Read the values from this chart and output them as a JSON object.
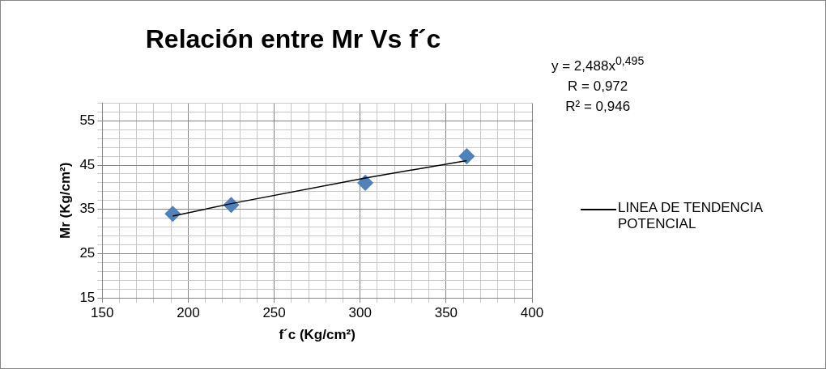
{
  "chart_data": {
    "type": "scatter",
    "title": "Relación entre Mr Vs f´c",
    "xlabel": "f´c (Kg/cm²)",
    "ylabel": "Mr (Kg/cm²)",
    "x": [
      191,
      225,
      303,
      362
    ],
    "series": [
      {
        "color": "#4f81bd",
        "marker": "diamond",
        "values": [
          34,
          36,
          41,
          47
        ]
      },
      {
        "type": "line",
        "name": "LINEA DE TENDENCIA POTENCIAL",
        "color": "#000000",
        "marker": "none",
        "line_style": "solid",
        "x": [
          191,
          225,
          303,
          362
        ],
        "values": [
          33.5,
          36.3,
          42.1,
          46.0
        ]
      }
    ],
    "xlim": [
      150,
      400
    ],
    "xticks": [
      150,
      {
        "value": 160,
        "label": null
      },
      {
        "value": 170,
        "label": null
      },
      {
        "value": 180,
        "label": null
      },
      {
        "value": 190,
        "label": null
      },
      200,
      {
        "value": 210,
        "label": null
      },
      {
        "value": 220,
        "label": null
      },
      {
        "value": 230,
        "label": null
      },
      {
        "value": 240,
        "label": null
      },
      250,
      {
        "value": 260,
        "label": null
      },
      {
        "value": 270,
        "label": null
      },
      {
        "value": 280,
        "label": null
      },
      {
        "value": 290,
        "label": null
      },
      300,
      {
        "value": 310,
        "label": null
      },
      {
        "value": 320,
        "label": null
      },
      {
        "value": 330,
        "label": null
      },
      {
        "value": 340,
        "label": null
      },
      350,
      {
        "value": 360,
        "label": null
      },
      {
        "value": 370,
        "label": null
      },
      {
        "value": 380,
        "label": null
      },
      {
        "value": 390,
        "label": null
      },
      400
    ],
    "ylim": [
      15,
      59
    ],
    "yticks": [
      15,
      {
        "value": 17,
        "label": null
      },
      {
        "value": 19,
        "label": null
      },
      {
        "value": 21,
        "label": null
      },
      {
        "value": 23,
        "label": null
      },
      25,
      {
        "value": 27,
        "label": null
      },
      {
        "value": 29,
        "label": null
      },
      {
        "value": 31,
        "label": null
      },
      {
        "value": 33,
        "label": null
      },
      35,
      {
        "value": 37,
        "label": null
      },
      {
        "value": 39,
        "label": null
      },
      {
        "value": 41,
        "label": null
      },
      {
        "value": 43,
        "label": null
      },
      45,
      {
        "value": 47,
        "label": null
      },
      {
        "value": 49,
        "label": null
      },
      {
        "value": 51,
        "label": null
      },
      {
        "value": 53,
        "label": null
      },
      55,
      {
        "value": 57,
        "label": null
      },
      {
        "value": 59,
        "label": null
      }
    ],
    "grid": true,
    "legend": "right",
    "annotations": [
      "y = 2,488x$^{0,495}$",
      "R = 0,972",
      "R² = 0,946"
    ]
  }
}
